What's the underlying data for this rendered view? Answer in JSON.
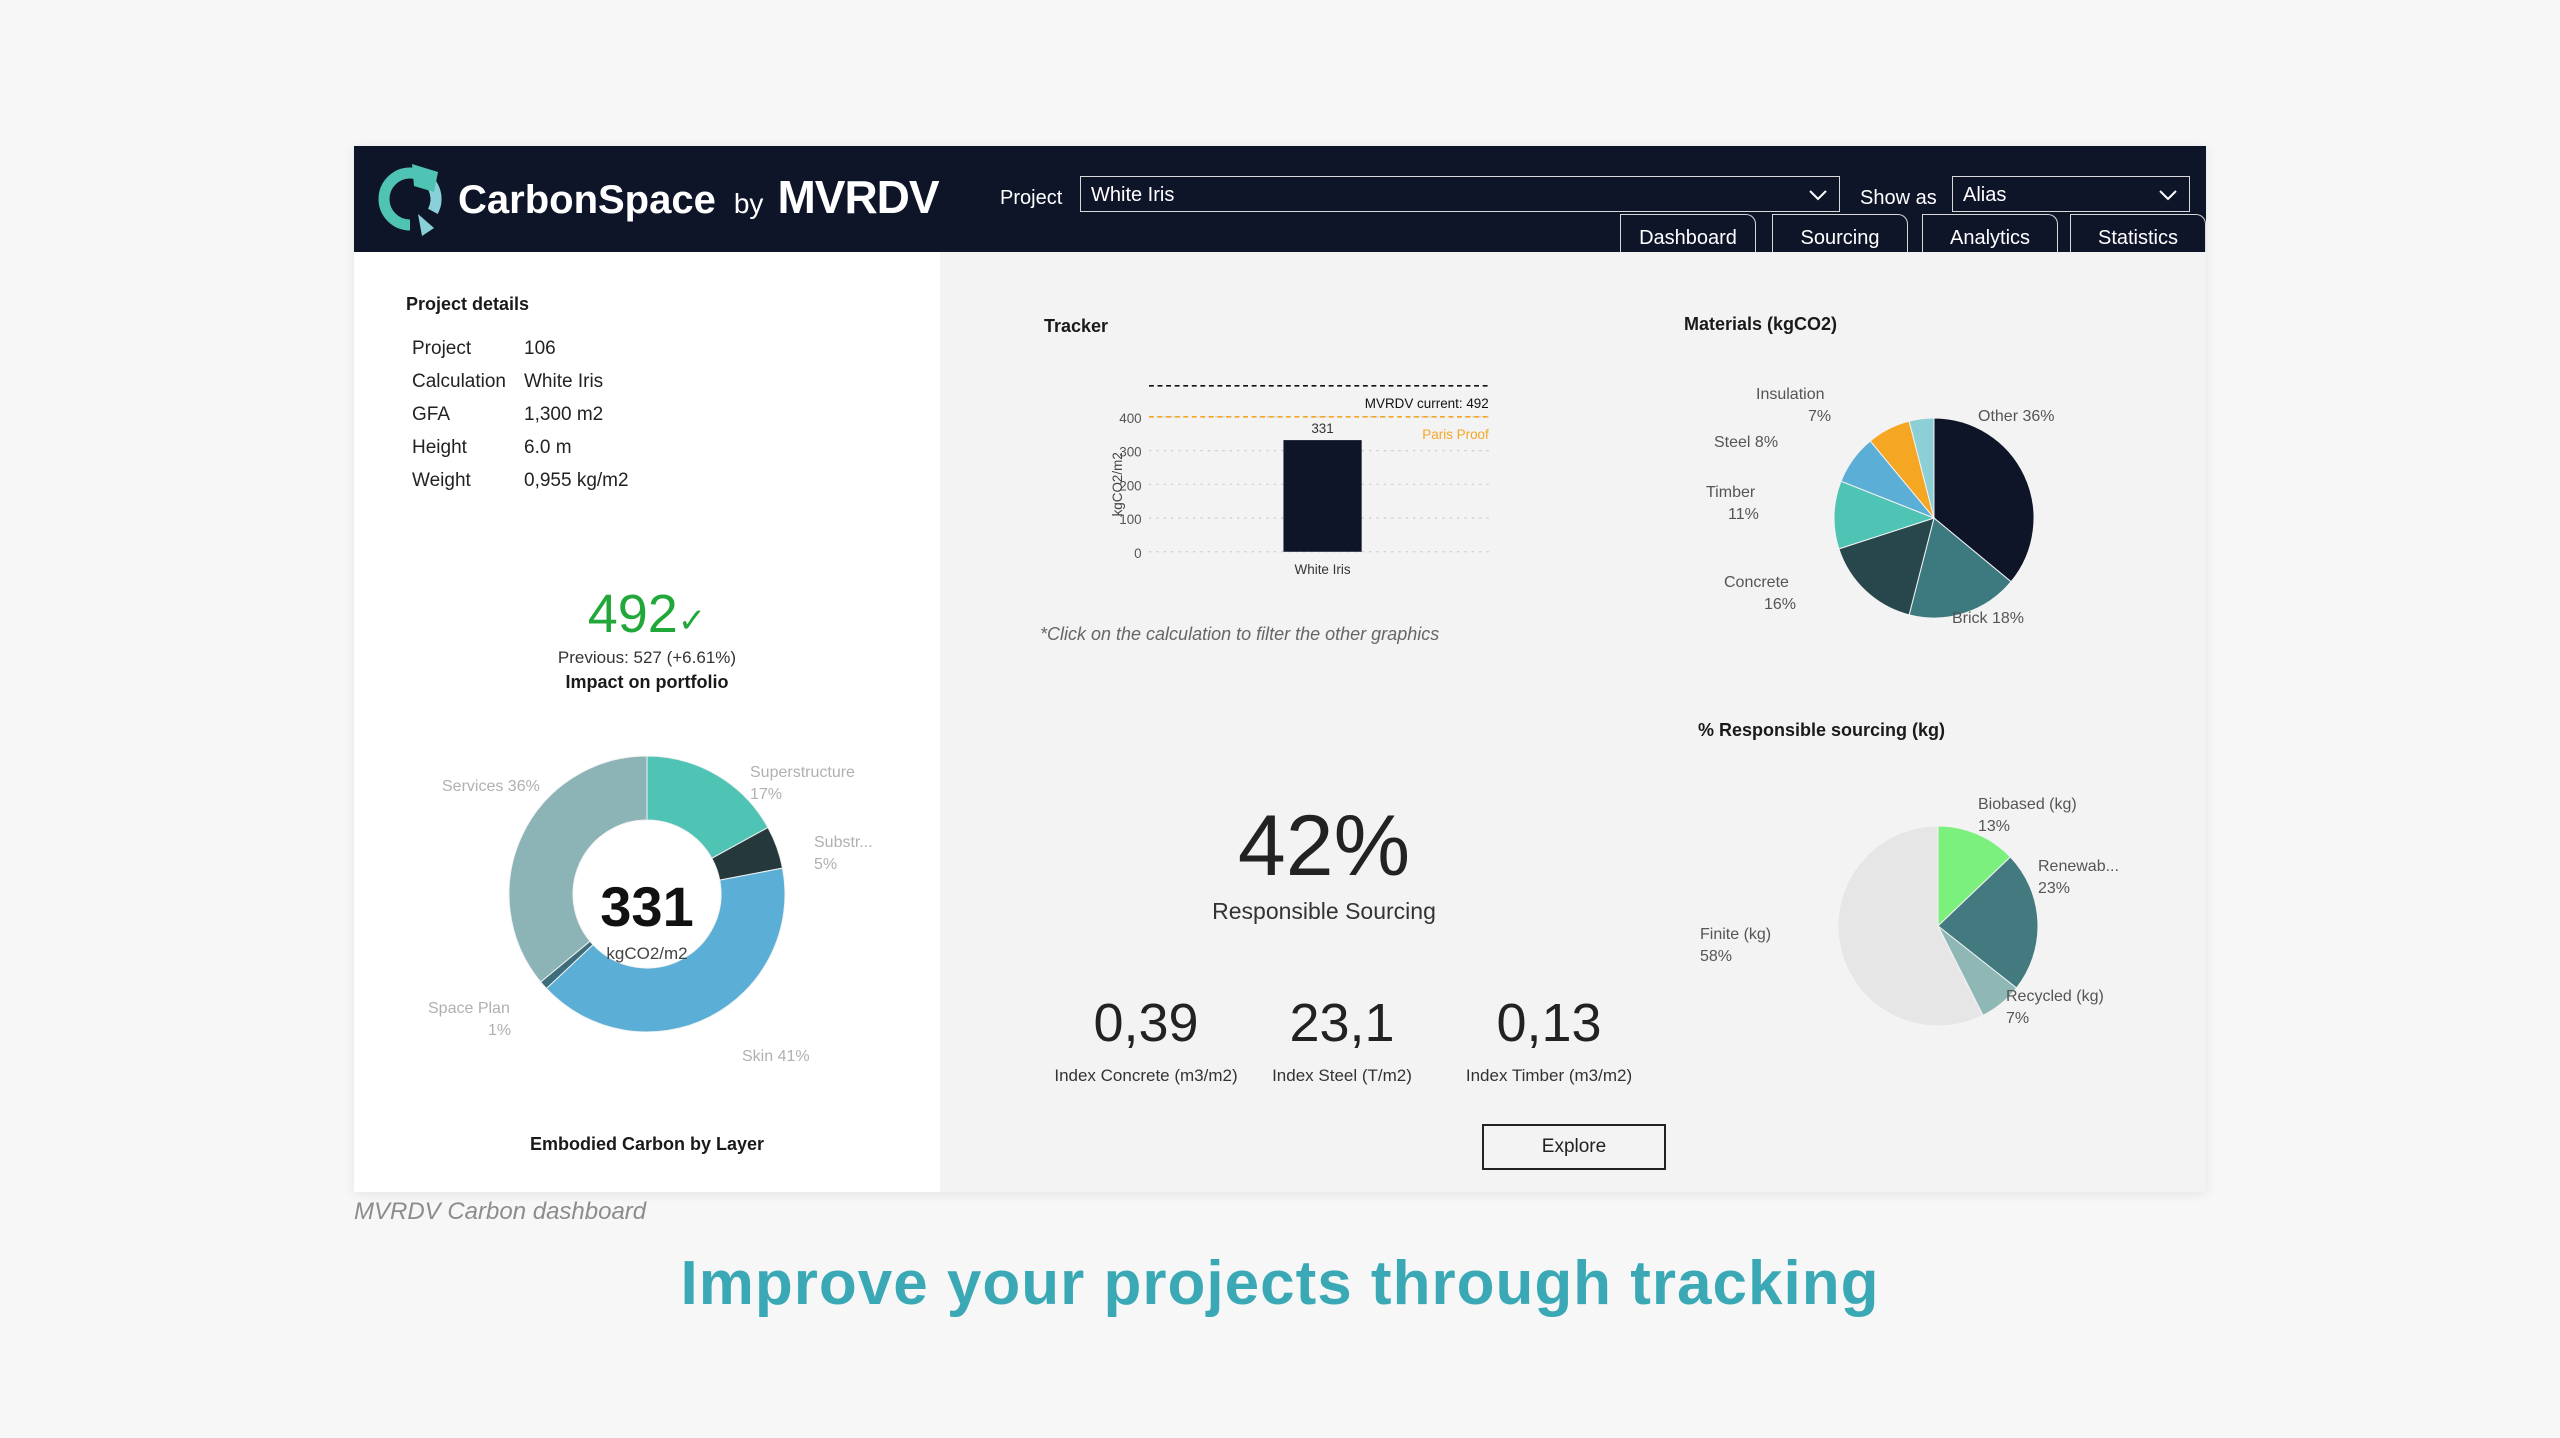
{
  "app": {
    "name": "CarbonSpace",
    "by": "by",
    "company": "MVRDV"
  },
  "header": {
    "project_label": "Project",
    "project_value": "White Iris",
    "show_as_label": "Show as",
    "show_as_value": "Alias",
    "tabs": [
      {
        "label": "Dashboard"
      },
      {
        "label": "Sourcing"
      },
      {
        "label": "Analytics"
      },
      {
        "label": "Statistics"
      }
    ]
  },
  "project_details": {
    "title": "Project details",
    "rows": [
      {
        "key": "Project",
        "value": "106"
      },
      {
        "key": "Calculation",
        "value": "White Iris"
      },
      {
        "key": "GFA",
        "value": "1,300 m2"
      },
      {
        "key": "Height",
        "value": "6.0 m"
      },
      {
        "key": "Weight",
        "value": "0,955 kg/m2"
      }
    ]
  },
  "portfolio": {
    "value": "492",
    "check": "✓",
    "previous": "Previous: 527 (+6.61%)",
    "title": "Impact on portfolio"
  },
  "layers_chart": {
    "center_value": "331",
    "center_unit": "kgCO2/m2",
    "title": "Embodied Carbon by Layer",
    "labels": {
      "services": "Services 36%",
      "superstructure_a": "Superstructure",
      "superstructure_b": "17%",
      "substructure_a": "Substr...",
      "substructure_b": "5%",
      "space_plan_a": "Space Plan",
      "space_plan_b": "1%",
      "skin": "Skin 41%"
    }
  },
  "tracker": {
    "title": "Tracker",
    "ylabel": "kgCO2/m2",
    "mvrdv_label": "MVRDV current: 492",
    "paris_label": "Paris Proof",
    "bar_label": "331",
    "category": "White Iris",
    "ticks": [
      "0",
      "100",
      "200",
      "300",
      "400"
    ],
    "note": "*Click on the calculation to filter the other graphics"
  },
  "sourcing": {
    "percent": "42%",
    "label": "Responsible Sourcing"
  },
  "indices": [
    {
      "value": "0,39",
      "label": "Index Concrete (m3/m2)"
    },
    {
      "value": "23,1",
      "label": "Index Steel (T/m2)"
    },
    {
      "value": "0,13",
      "label": "Index Timber (m3/m2)"
    }
  ],
  "explore_label": "Explore",
  "materials": {
    "title": "Materials (kgCO2)",
    "labels": {
      "insulation_a": "Insulation",
      "insulation_b": "7%",
      "other": "Other 36%",
      "steel": "Steel 8%",
      "timber_a": "Timber",
      "timber_b": "11%",
      "concrete_a": "Concrete",
      "concrete_b": "16%",
      "brick": "Brick 18%"
    }
  },
  "responsible": {
    "title": "% Responsible sourcing (kg)",
    "labels": {
      "biobased_a": "Biobased (kg)",
      "biobased_b": "13%",
      "renewable_a": "Renewab...",
      "renewable_b": "23%",
      "finite_a": "Finite (kg)",
      "finite_b": "58%",
      "recycled_a": "Recycled (kg)",
      "recycled_b": "7%"
    }
  },
  "caption": "MVRDV Carbon dashboard",
  "headline": "Improve your projects through tracking",
  "chart_data": [
    {
      "type": "bar",
      "title": "Tracker",
      "categories": [
        "White Iris"
      ],
      "values": [
        331
      ],
      "ylabel": "kgCO2/m2",
      "ylim": [
        0,
        400
      ],
      "yticks": [
        0,
        100,
        200,
        300,
        400
      ],
      "reference_lines": [
        {
          "label": "MVRDV current: 492",
          "value": 492,
          "color": "#111111"
        },
        {
          "label": "Paris Proof",
          "value": 400,
          "color": "#f5a623"
        }
      ]
    },
    {
      "type": "pie",
      "title": "Embodied Carbon by Layer",
      "donut": true,
      "slices": [
        {
          "name": "Superstructure",
          "value": 17,
          "color": "#4fc3b4"
        },
        {
          "name": "Substr...",
          "value": 5,
          "color": "#25393d"
        },
        {
          "name": "Skin",
          "value": 41,
          "color": "#5bafd6"
        },
        {
          "name": "Space Plan",
          "value": 1,
          "color": "#3d6d7a"
        },
        {
          "name": "Services",
          "value": 36,
          "color": "#8cb3b5"
        }
      ]
    },
    {
      "type": "pie",
      "title": "Materials (kgCO2)",
      "slices": [
        {
          "name": "Other",
          "value": 36,
          "color": "#0f1529"
        },
        {
          "name": "Brick",
          "value": 18,
          "color": "#3d7a80"
        },
        {
          "name": "Concrete",
          "value": 16,
          "color": "#28474c"
        },
        {
          "name": "Timber",
          "value": 11,
          "color": "#4fc3b4"
        },
        {
          "name": "Steel",
          "value": 8,
          "color": "#5bafd6"
        },
        {
          "name": "Insulation",
          "value": 7,
          "color": "#f5a623"
        },
        {
          "name": "",
          "value": 4,
          "color": "#8ccfd6"
        }
      ]
    },
    {
      "type": "pie",
      "title": "% Responsible sourcing (kg)",
      "slices": [
        {
          "name": "Biobased (kg)",
          "value": 13,
          "color": "#7cf07c"
        },
        {
          "name": "Renewab...",
          "value": 23,
          "color": "#437a80"
        },
        {
          "name": "Recycled (kg)",
          "value": 7,
          "color": "#8eb7b5"
        },
        {
          "name": "Finite (kg)",
          "value": 58,
          "color": "#e6e6e6"
        }
      ]
    }
  ]
}
